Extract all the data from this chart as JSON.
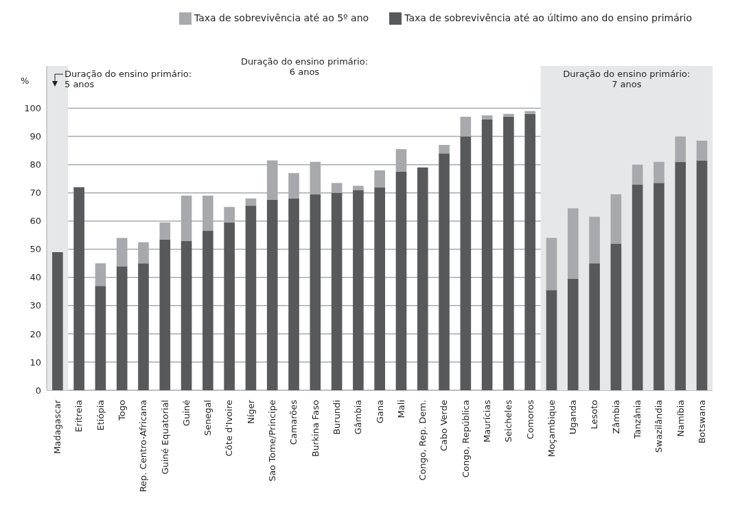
{
  "chart_data": {
    "type": "bar",
    "stacked": true,
    "ylabel": "%",
    "categories": [
      "Madagascar",
      "Eritreia",
      "Etiópia",
      "Togo",
      "Rep. Centro-Africana",
      "Guiné Equatorial",
      "Guiné",
      "Senegal",
      "Côte d'Ivoire",
      "Níger",
      "Sao Tome/Principe",
      "Camarões",
      "Burkina Faso",
      "Burundi",
      "Gâmbia",
      "Gana",
      "Mali",
      "Congo, Rep. Dem.",
      "Cabo Verde",
      "Congo, República",
      "Maurícias",
      "Seicheles",
      "Comoros",
      "Moçambique",
      "Uganda",
      "Lesoto",
      "Zâmbia",
      "Tanzânia",
      "Swazilândia",
      "Namíbia",
      "Botswana"
    ],
    "series": [
      {
        "name": "Taxa de sobrevivência até ao último ano do ensino primário",
        "color": "#58595b",
        "values": [
          49,
          72,
          37,
          44,
          45,
          53.5,
          53,
          56.5,
          59.5,
          65.5,
          67.5,
          68,
          69.5,
          70,
          71,
          72,
          77.5,
          79,
          84,
          90,
          96,
          97,
          98,
          35.5,
          39.5,
          45,
          52,
          73,
          73.5,
          81,
          81.5
        ]
      },
      {
        "name": "Taxa de sobrevivência até ao 5º ano",
        "color": "#a7a9ac",
        "values": [
          null,
          null,
          8,
          10,
          7.5,
          6,
          16,
          12.5,
          5.5,
          2.5,
          14,
          9,
          11.5,
          3.5,
          1.5,
          6,
          8,
          null,
          3,
          7,
          1.5,
          1,
          1,
          18.5,
          25,
          16.5,
          17.5,
          7,
          7.5,
          9,
          7
        ]
      }
    ],
    "ylim": [
      0,
      115
    ],
    "yticks": [
      0,
      10,
      20,
      30,
      40,
      50,
      60,
      70,
      80,
      90,
      100
    ],
    "grid": "y",
    "legend": "top right",
    "bands": [
      {
        "axis": "x",
        "from": "Madagascar",
        "to": "Madagascar",
        "label": "Duração do ensino primário:\n5 anos",
        "color": "#e6e7e8"
      },
      {
        "axis": "x",
        "from": "Moçambique",
        "to": "Botswana",
        "label": "Duração do ensino primário:\n7 anos",
        "color": "#e6e7e8"
      }
    ],
    "annotations": [
      "Duração do ensino primário:\n6 anos"
    ]
  }
}
